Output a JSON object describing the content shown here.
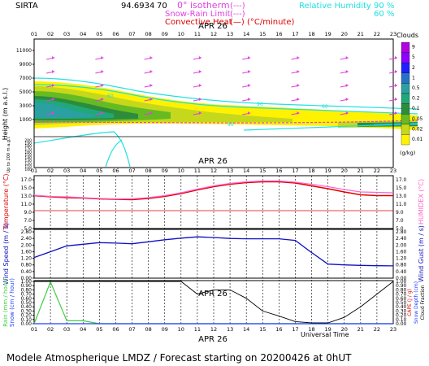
{
  "header": {
    "site": "SIRTA",
    "value": "94.6934",
    "num2": "70",
    "iso_label": "0° isotherm",
    "iso_key": "(---)",
    "snow_rain_label": "Snow-Rain Limit",
    "snow_rain_key": "(---)",
    "conv_label": "Convective Heat",
    "conv_key": "(—) (°C/minute)",
    "rh_label": "Relative Humidity",
    "rh_90": "90 %",
    "rh_60": "60 %"
  },
  "hours": [
    "01",
    "02",
    "03",
    "04",
    "05",
    "06",
    "07",
    "08",
    "09",
    "10",
    "11",
    "12",
    "13",
    "14",
    "15",
    "16",
    "17",
    "18",
    "19",
    "20",
    "21",
    "22",
    "23"
  ],
  "date_label": "APR 26",
  "footer": {
    "universal_time": "Universal Time",
    "caption": "Modele Atmospherique LMDZ / Forecast starting on 20200426 at 0hUT"
  },
  "panels": {
    "cloud": {
      "ylabel": "Height (m a.s.l.)",
      "ylabel2": "Up to 200 m a.g.l.",
      "upper_ticks": [
        "11000",
        "9000",
        "7000",
        "5000",
        "3000",
        "1000"
      ],
      "lower_ticks": [
        "200",
        "190",
        "180",
        "170",
        "160",
        "150",
        "140",
        "130",
        "120",
        "110",
        "100"
      ],
      "colorbar_title": "Clouds",
      "colorbar_unit": "(g/kg)",
      "colorbar_ticks": [
        "9",
        "5",
        "2",
        "1",
        "0.5",
        "0.2",
        "0.1",
        "0.05",
        "0.02",
        "0.01"
      ],
      "colorbar_colors": [
        "#b000e0",
        "#8c00ff",
        "#2020ff",
        "#2870c8",
        "#2aa0a0",
        "#20a878",
        "#2c8c3c",
        "#66bb22",
        "#c6d81c",
        "#fff200"
      ],
      "contour_labels": [
        "60",
        "90",
        "60",
        "90"
      ]
    },
    "temp": {
      "ylabel": "Temperature (°C)",
      "ylabel_right": "HUMIDEX (°C)",
      "ticks": [
        "17.0",
        "15.0",
        "13.0",
        "11.0",
        "9.0",
        "7.0",
        "5.0"
      ]
    },
    "wind": {
      "ylabel": "Wind Speed (m / s)",
      "ylabel_right": "Wind Gust (m / s)",
      "ticks": [
        "2.80",
        "2.40",
        "2.00",
        "1.60",
        "1.20",
        "0.80",
        "0.40",
        "0.00"
      ]
    },
    "rain": {
      "ylabel": "Rain (mm / hour)",
      "ylabel2": "Snow (cm / hour)",
      "ylabel_right": "CAPE (J / g)",
      "ylabel_right2": "Snow Depth (cm)",
      "ylabel_right3": "Cloud Fraction",
      "ticks": [
        "1.00",
        "0.90",
        "0.80",
        "0.70",
        "0.60",
        "0.50",
        "0.40",
        "0.30",
        "0.20",
        "0.10",
        "0.00"
      ]
    }
  },
  "chart_data": [
    {
      "type": "line",
      "title": "",
      "xlabel": "",
      "ylabel": "Temperature (°C)",
      "x": [
        "01",
        "02",
        "03",
        "04",
        "05",
        "06",
        "07",
        "08",
        "09",
        "10",
        "11",
        "12",
        "13",
        "14",
        "15",
        "16",
        "17",
        "18",
        "19",
        "20",
        "21",
        "22",
        "23"
      ],
      "ylim": [
        5,
        17
      ],
      "series": [
        {
          "name": "Temperature",
          "color": "#e00000",
          "values": [
            13.1,
            12.8,
            12.6,
            12.5,
            12.3,
            12.2,
            12.1,
            12.4,
            12.9,
            13.6,
            14.5,
            15.3,
            15.9,
            16.3,
            16.5,
            16.5,
            16.2,
            15.5,
            14.8,
            14.0,
            13.3,
            13.1,
            13.1
          ]
        },
        {
          "name": "Humidex",
          "color": "#ff66cc",
          "values": [
            13.2,
            12.9,
            12.8,
            12.6,
            12.4,
            12.3,
            12.3,
            12.6,
            13.1,
            13.8,
            14.7,
            15.5,
            16.1,
            16.5,
            16.7,
            16.7,
            16.4,
            15.9,
            15.3,
            14.6,
            14.0,
            13.9,
            13.8
          ]
        },
        {
          "name": "0° reference",
          "color": "#e00000",
          "values": [
            9.4,
            9.4,
            9.4,
            9.4,
            9.4,
            9.4,
            9.4,
            9.4,
            9.4,
            9.4,
            9.4,
            9.4,
            9.4,
            9.4,
            9.4,
            9.4,
            9.4,
            9.4,
            9.4,
            9.4,
            9.4,
            9.4,
            9.4
          ]
        }
      ]
    },
    {
      "type": "line",
      "title": "",
      "xlabel": "",
      "ylabel": "Wind Speed (m / s)",
      "x": [
        "01",
        "02",
        "03",
        "04",
        "05",
        "06",
        "07",
        "08",
        "09",
        "10",
        "11",
        "12",
        "13",
        "14",
        "15",
        "16",
        "17",
        "18",
        "19",
        "20",
        "21",
        "22",
        "23"
      ],
      "ylim": [
        0,
        2.8
      ],
      "series": [
        {
          "name": "Wind Speed",
          "color": "#1010c0",
          "values": [
            1.25,
            1.6,
            1.95,
            2.05,
            2.15,
            2.12,
            2.08,
            2.2,
            2.32,
            2.42,
            2.5,
            2.46,
            2.4,
            2.38,
            2.38,
            2.38,
            2.28,
            1.55,
            0.85,
            0.8,
            0.77,
            0.75,
            0.74
          ]
        }
      ]
    },
    {
      "type": "line",
      "title": "",
      "xlabel": "Universal Time",
      "ylabel": "Rain (mm / hour)",
      "x": [
        "01",
        "02",
        "03",
        "04",
        "05",
        "06",
        "07",
        "08",
        "09",
        "10",
        "11",
        "12",
        "13",
        "14",
        "15",
        "16",
        "17",
        "18",
        "19",
        "20",
        "21",
        "22",
        "23"
      ],
      "ylim": [
        0,
        1
      ],
      "series": [
        {
          "name": "Rain",
          "color": "#40d040",
          "values": [
            0.0,
            0.99,
            0.07,
            0.07,
            0.0,
            0.0,
            0.0,
            0.0,
            0.0,
            0.0,
            0.0,
            0.0,
            0.0,
            0.0,
            0.0,
            0.0,
            0.0,
            0.0,
            0.0,
            0.0,
            0.0,
            0.0,
            0.0
          ]
        },
        {
          "name": "Cloud Fraction",
          "color": "#000000",
          "values": [
            1.0,
            1.0,
            1.0,
            1.0,
            1.0,
            1.0,
            1.0,
            1.0,
            1.0,
            1.0,
            0.7,
            0.8,
            0.8,
            0.6,
            0.3,
            0.18,
            0.05,
            0.02,
            0.02,
            0.15,
            0.4,
            0.7,
            1.0
          ]
        },
        {
          "name": "Snow",
          "color": "#2040ff",
          "values": [
            0.0,
            0.0,
            0.0,
            0.0,
            0.0,
            0.0,
            0.0,
            0.0,
            0.0,
            0.0,
            0.0,
            0.0,
            0.0,
            0.0,
            0.0,
            0.0,
            0.0,
            0.0,
            0.0,
            0.0,
            0.0,
            0.0,
            0.0
          ]
        }
      ]
    }
  ]
}
